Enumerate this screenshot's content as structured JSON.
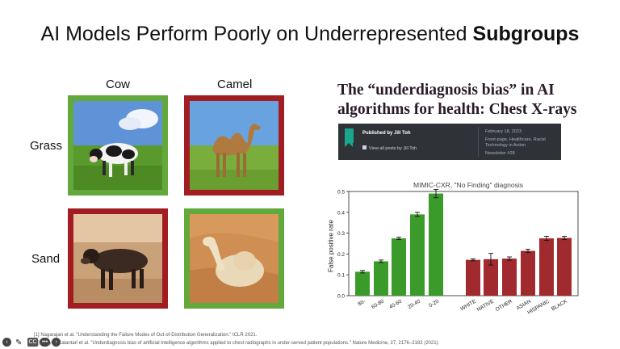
{
  "slide": {
    "title_main": "AI Models Perform Poorly on Underrepresented ",
    "title_bold": "Subgroups"
  },
  "grid": {
    "col_labels": [
      "Cow",
      "Camel"
    ],
    "row_labels": [
      "Grass",
      "Sand"
    ],
    "tiles": [
      {
        "subject": "cow",
        "background": "grass",
        "border": "green"
      },
      {
        "subject": "camel",
        "background": "grass",
        "border": "red"
      },
      {
        "subject": "cow",
        "background": "sand",
        "border": "red"
      },
      {
        "subject": "camel",
        "background": "sand",
        "border": "green"
      }
    ],
    "colors": {
      "green": "#63a83a",
      "red": "#a11d22"
    }
  },
  "article": {
    "title": "The “underdiagnosis bias” in AI algorithms for health: Chest X-rays",
    "published_by": "Published by Jill Toh",
    "view_all": "View all posts by Jill Toh",
    "date": "February 18, 2023",
    "categories": "Front-page, Healthcare, Racist Technology in Action",
    "newsletter": "Newsletter #28"
  },
  "chart_data": {
    "type": "bar",
    "title": "MIMIC-CXR, \"No Finding\" diagnosis",
    "ylabel": "False positive rate",
    "ylim": [
      0.0,
      0.5
    ],
    "yticks": [
      "0.0",
      "0.1",
      "0.2",
      "0.3",
      "0.4",
      "0.5"
    ],
    "groups": [
      {
        "color": "#3b9b2a",
        "categories": [
          "80-",
          "60-80",
          "40-60",
          "20-40",
          "0-20"
        ],
        "values": [
          0.115,
          0.165,
          0.275,
          0.39,
          0.49
        ],
        "errors": [
          0.006,
          0.006,
          0.006,
          0.01,
          0.02
        ]
      },
      {
        "color": "#a12a2e",
        "categories": [
          "WHITE",
          "NATIVE",
          "OTHER",
          "ASIAN",
          "HISPANIC",
          "BLACK"
        ],
        "values": [
          0.172,
          0.175,
          0.178,
          0.215,
          0.275,
          0.277
        ],
        "errors": [
          0.005,
          0.028,
          0.008,
          0.008,
          0.01,
          0.008
        ]
      }
    ]
  },
  "footnotes": [
    "[1] Nagarajan et al. \"Understanding the Failure Modes of Out-of-Distribution Generalization.\" ICLR 2021.",
    "[2] Seyyed-Kalantari et al. \"Underdiagnosis bias of artificial intelligence algorithms applied to chest radiographs in under-served patient populations.\" Nature Medicine, 27, 2176–2182 (2021)."
  ],
  "controls": {
    "back_icon": "back-icon",
    "edit_icon": "pencil-icon",
    "cc_label": "CC",
    "more_label": "•••",
    "forward_icon": "forward-icon"
  }
}
